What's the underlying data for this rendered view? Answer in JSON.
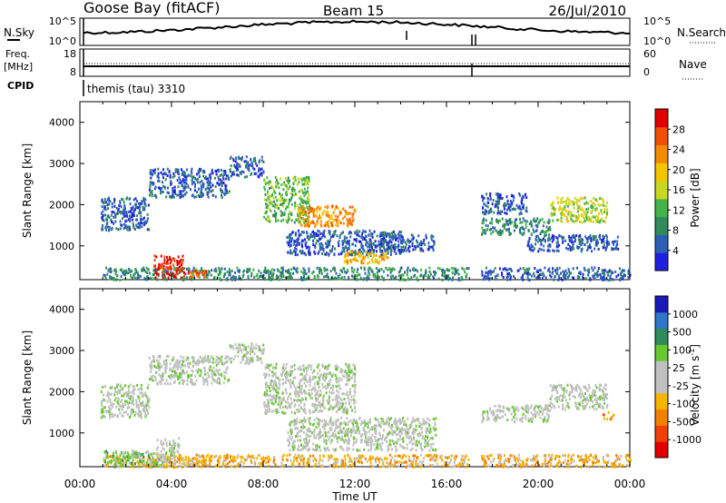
{
  "header": {
    "site": "Goose Bay (fitACF)",
    "beam": "Beam 15",
    "date": "26/Jul/2010"
  },
  "noise_panel": {
    "left_label": "N.Sky",
    "right_label": "N.Search",
    "tick_top": "10^5",
    "tick_bottom": "10^0"
  },
  "freq_panel": {
    "left_label_1": "Freq.",
    "left_label_2": "[MHz]",
    "left_tick_top": "18",
    "left_tick_bottom": "8",
    "right_label": "Nave",
    "right_tick_top": "60",
    "right_tick_bottom": "0"
  },
  "cpid": {
    "label": "CPID",
    "value": "themis (tau) 3310"
  },
  "colors": {
    "power_scale": [
      "#1f1fe0",
      "#2e5fb8",
      "#2f8a5c",
      "#45b34a",
      "#c8d820",
      "#f5c400",
      "#f38a00",
      "#f05000",
      "#e00000"
    ],
    "velocity_scale": [
      "#1a1ab8",
      "#2f78c8",
      "#2f8a5c",
      "#67c830",
      "#c0c0c0",
      "#c0c0c0",
      "#f5b400",
      "#f08000",
      "#f04000",
      "#e00000"
    ]
  },
  "chart_data": [
    {
      "type": "heatmap",
      "panel": "power",
      "ylabel": "Slant Range [km]",
      "colorbar_label": "Power [dB]",
      "colorbar_ticks": [
        "4",
        "8",
        "12",
        "16",
        "20",
        "24",
        "28"
      ],
      "ylim": [
        180,
        4500
      ],
      "yticks": [
        "1000",
        "2000",
        "3000",
        "4000"
      ],
      "xlim": [
        "00:00",
        "24:00"
      ],
      "xticks": [
        "00:00",
        "04:00",
        "08:00",
        "12:00",
        "16:00",
        "20:00",
        "00:00"
      ],
      "regions": [
        {
          "t0": 0.9,
          "t1": 3.0,
          "r0": 1400,
          "r1": 2200,
          "level": 1
        },
        {
          "t0": 3.0,
          "t1": 6.5,
          "r0": 2200,
          "r1": 2900,
          "level": 1
        },
        {
          "t0": 6.5,
          "t1": 8.0,
          "r0": 2700,
          "r1": 3200,
          "level": 1
        },
        {
          "t0": 8.0,
          "t1": 10.0,
          "r0": 1600,
          "r1": 2700,
          "level": 3
        },
        {
          "t0": 9.5,
          "t1": 12.0,
          "r0": 1500,
          "r1": 2000,
          "level": 6
        },
        {
          "t0": 9.0,
          "t1": 14.0,
          "r0": 800,
          "r1": 1400,
          "level": 1
        },
        {
          "t0": 11.5,
          "t1": 13.5,
          "r0": 600,
          "r1": 900,
          "level": 5
        },
        {
          "t0": 12.5,
          "t1": 15.5,
          "r0": 900,
          "r1": 1300,
          "level": 1
        },
        {
          "t0": 1.0,
          "t1": 17.0,
          "r0": 200,
          "r1": 500,
          "level": 2
        },
        {
          "t0": 3.2,
          "t1": 4.5,
          "r0": 250,
          "r1": 800,
          "level": 8
        },
        {
          "t0": 4.5,
          "t1": 5.5,
          "r0": 250,
          "r1": 450,
          "level": 7
        },
        {
          "t0": 17.5,
          "t1": 24.0,
          "r0": 200,
          "r1": 500,
          "level": 1
        },
        {
          "t0": 17.5,
          "t1": 20.5,
          "r0": 1300,
          "r1": 1700,
          "level": 2
        },
        {
          "t0": 20.5,
          "t1": 23.0,
          "r0": 1600,
          "r1": 2200,
          "level": 4
        },
        {
          "t0": 17.5,
          "t1": 19.5,
          "r0": 1800,
          "r1": 2300,
          "level": 1
        },
        {
          "t0": 19.5,
          "t1": 23.5,
          "r0": 900,
          "r1": 1300,
          "level": 1
        }
      ]
    },
    {
      "type": "heatmap",
      "panel": "velocity",
      "ylabel": "Slant Range [km]",
      "xlabel": "Time UT",
      "colorbar_label": "Velocity [m s^-1]",
      "colorbar_ticks": [
        "1000",
        "500",
        "100",
        "25",
        "-25",
        "-100",
        "-500",
        "-1000"
      ],
      "ylim": [
        180,
        4500
      ],
      "yticks": [
        "1000",
        "2000",
        "3000",
        "4000"
      ],
      "xlim": [
        "00:00",
        "24:00"
      ],
      "xticks": [
        "00:00",
        "04:00",
        "08:00",
        "12:00",
        "16:00",
        "20:00",
        "00:00"
      ],
      "regions": [
        {
          "t0": 0.9,
          "t1": 3.0,
          "r0": 1400,
          "r1": 2200,
          "level": 4
        },
        {
          "t0": 3.0,
          "t1": 6.5,
          "r0": 2200,
          "r1": 2900,
          "level": 4
        },
        {
          "t0": 6.5,
          "t1": 8.0,
          "r0": 2700,
          "r1": 3200,
          "level": 4
        },
        {
          "t0": 8.0,
          "t1": 12.0,
          "r0": 1500,
          "r1": 2700,
          "level": 4
        },
        {
          "t0": 9.0,
          "t1": 15.5,
          "r0": 600,
          "r1": 1400,
          "level": 4
        },
        {
          "t0": 1.0,
          "t1": 17.0,
          "r0": 200,
          "r1": 500,
          "level": 6
        },
        {
          "t0": 1.0,
          "t1": 3.5,
          "r0": 200,
          "r1": 600,
          "level": 3
        },
        {
          "t0": 3.3,
          "t1": 4.3,
          "r0": 300,
          "r1": 900,
          "level": 4
        },
        {
          "t0": 4.0,
          "t1": 5.5,
          "r0": 200,
          "r1": 400,
          "level": 6
        },
        {
          "t0": 17.5,
          "t1": 24.0,
          "r0": 200,
          "r1": 500,
          "level": 6
        },
        {
          "t0": 17.5,
          "t1": 20.5,
          "r0": 1300,
          "r1": 1700,
          "level": 4
        },
        {
          "t0": 20.5,
          "t1": 23.0,
          "r0": 1600,
          "r1": 2200,
          "level": 4
        },
        {
          "t0": 22.8,
          "t1": 23.3,
          "r0": 1350,
          "r1": 1550,
          "level": 7
        }
      ]
    }
  ]
}
